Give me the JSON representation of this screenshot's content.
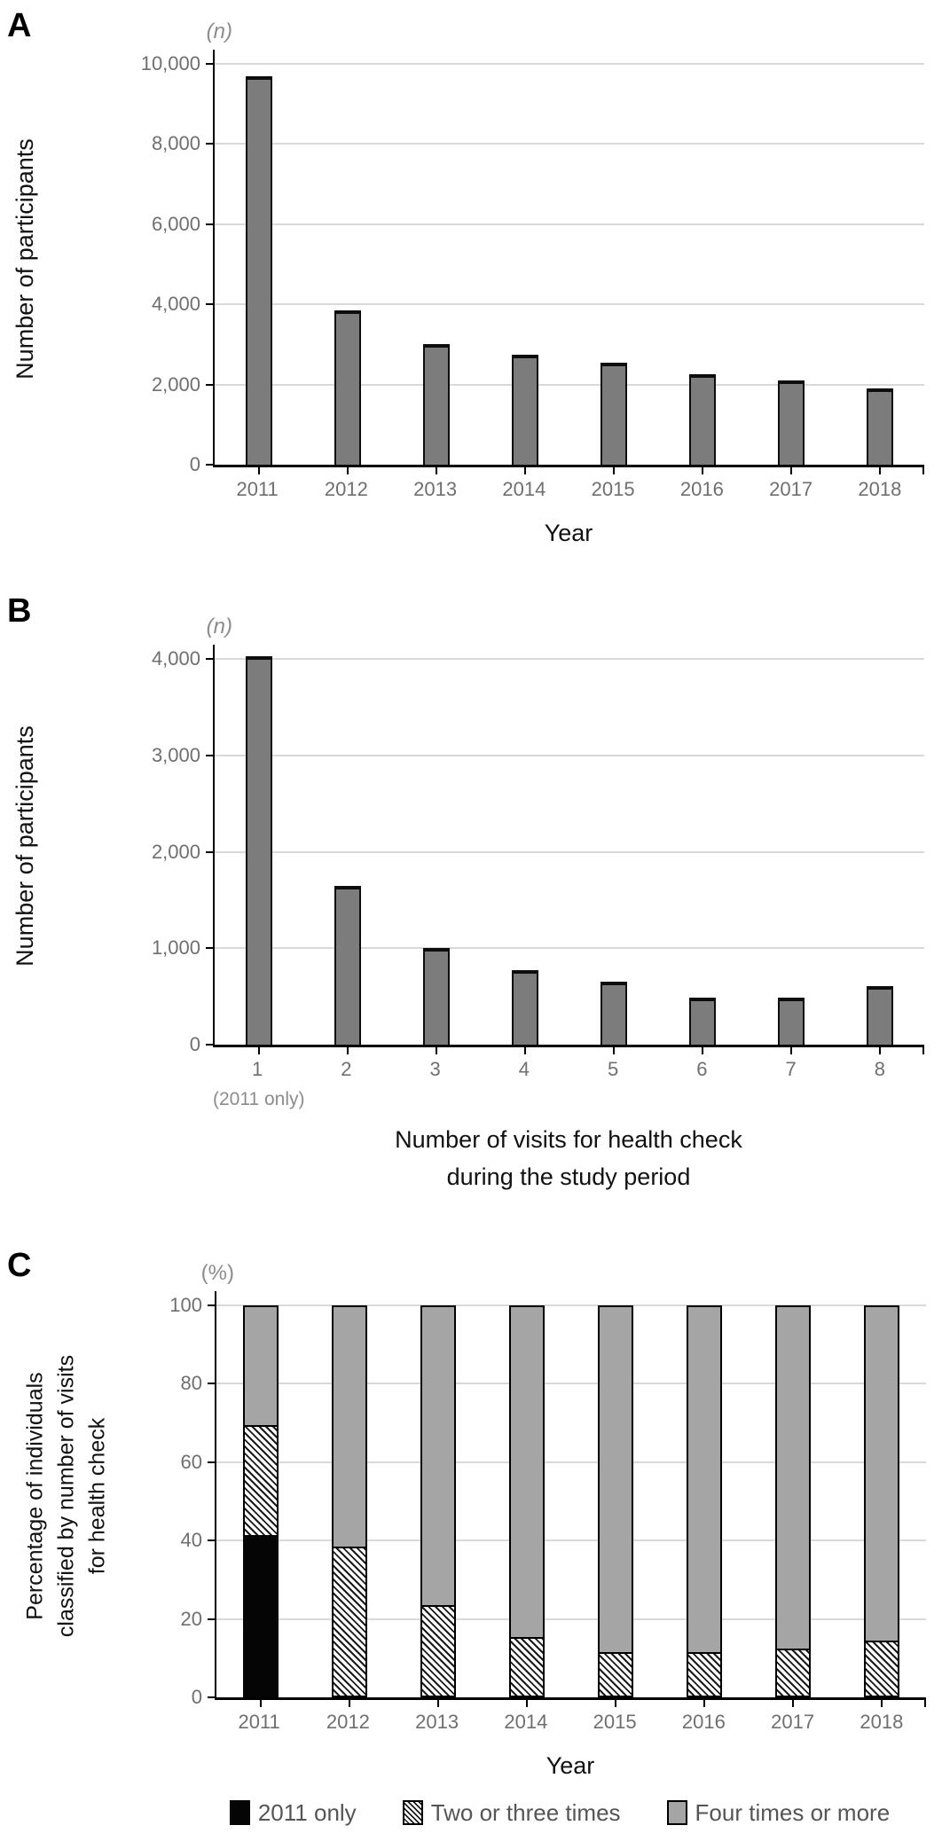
{
  "colors": {
    "bar_fill_gray": "#7c7c7c",
    "stacked_gray": "#a5a5a5",
    "stacked_black": "#050505",
    "gridline": "#d9d9d9",
    "axis_line": "#000000",
    "tick_text": "#6f6f6f",
    "unit_text": "#8c8c8c",
    "title_text": "#111111",
    "legend_text": "#555555"
  },
  "chart_data": [
    {
      "panel": "A",
      "type": "bar",
      "unit": "(n)",
      "ylabel": "Number of participants",
      "xlabel": "Year",
      "categories": [
        "2011",
        "2012",
        "2013",
        "2014",
        "2015",
        "2016",
        "2017",
        "2018"
      ],
      "values": [
        9700,
        3850,
        3000,
        2750,
        2550,
        2250,
        2100,
        1900
      ],
      "ylim": [
        0,
        10000
      ],
      "yticks": [
        0,
        2000,
        4000,
        6000,
        8000,
        10000
      ],
      "ytick_labels": [
        "0",
        "2,000",
        "4,000",
        "6,000",
        "8,000",
        "10,000"
      ],
      "grid": true,
      "legend_position": "none"
    },
    {
      "panel": "B",
      "type": "bar",
      "unit": "(n)",
      "ylabel": "Number of participants",
      "xlabel_lines": [
        "Number of visits for health check",
        "during the study period"
      ],
      "categories": [
        "1",
        "2",
        "3",
        "4",
        "5",
        "6",
        "7",
        "8"
      ],
      "category_note": {
        "index": 0,
        "text": "(2011 only)"
      },
      "values": [
        4030,
        1650,
        1000,
        770,
        650,
        490,
        490,
        610
      ],
      "ylim": [
        0,
        4000
      ],
      "yticks": [
        0,
        1000,
        2000,
        3000,
        4000
      ],
      "ytick_labels": [
        "0",
        "1,000",
        "2,000",
        "3,000",
        "4,000"
      ],
      "grid": true,
      "legend_position": "none"
    },
    {
      "panel": "C",
      "type": "stacked-bar",
      "unit": "(%)",
      "ylabel_lines": [
        "Percentage of individuals",
        "classified by number of visits",
        "for health check"
      ],
      "xlabel": "Year",
      "categories": [
        "2011",
        "2012",
        "2013",
        "2014",
        "2015",
        "2016",
        "2017",
        "2018"
      ],
      "series": [
        {
          "name": "2011 only",
          "style": "solid-black",
          "values": [
            41,
            0,
            0,
            0,
            0,
            0,
            0,
            0
          ]
        },
        {
          "name": "Two or three times",
          "style": "hatched",
          "values": [
            28,
            38,
            23,
            15,
            11,
            11,
            12,
            14
          ]
        },
        {
          "name": "Four times or more",
          "style": "solid-gray",
          "values": [
            31,
            62,
            77,
            85,
            89,
            89,
            88,
            86
          ]
        }
      ],
      "ylim": [
        0,
        100
      ],
      "yticks": [
        0,
        20,
        40,
        60,
        80,
        100
      ],
      "ytick_labels": [
        "0",
        "20",
        "40",
        "60",
        "80",
        "100"
      ],
      "grid": true,
      "legend_position": "bottom"
    }
  ]
}
